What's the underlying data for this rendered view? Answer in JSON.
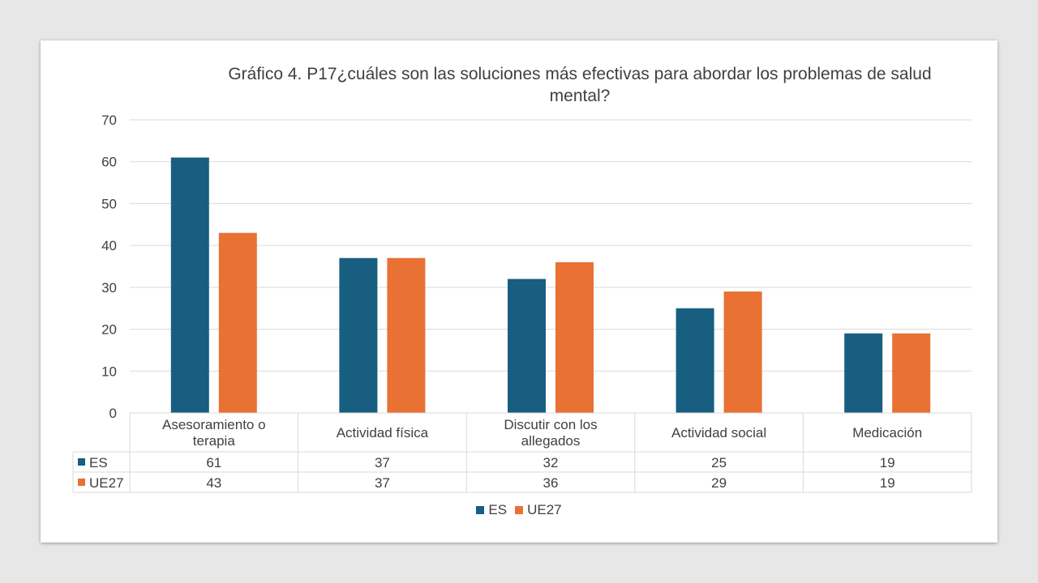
{
  "colors": {
    "ES": "#175e80",
    "UE27": "#e87133"
  },
  "chart_data": {
    "type": "bar",
    "title": "Gráfico 4. P17¿cuáles son las soluciones más efectivas para abordar los problemas de salud mental?",
    "categories": [
      [
        "Asesoramiento o",
        "terapia"
      ],
      [
        "Actividad física"
      ],
      [
        "Discutir con los",
        "allegados"
      ],
      [
        "Actividad social"
      ],
      [
        "Medicación"
      ]
    ],
    "series": [
      {
        "name": "ES",
        "values": [
          61,
          37,
          32,
          25,
          19
        ]
      },
      {
        "name": "UE27",
        "values": [
          43,
          37,
          36,
          29,
          19
        ]
      }
    ],
    "ylim": [
      0,
      70
    ],
    "yticks": [
      0,
      10,
      20,
      30,
      40,
      50,
      60,
      70
    ],
    "grid": true,
    "data_table": true,
    "legend": "bottom"
  }
}
